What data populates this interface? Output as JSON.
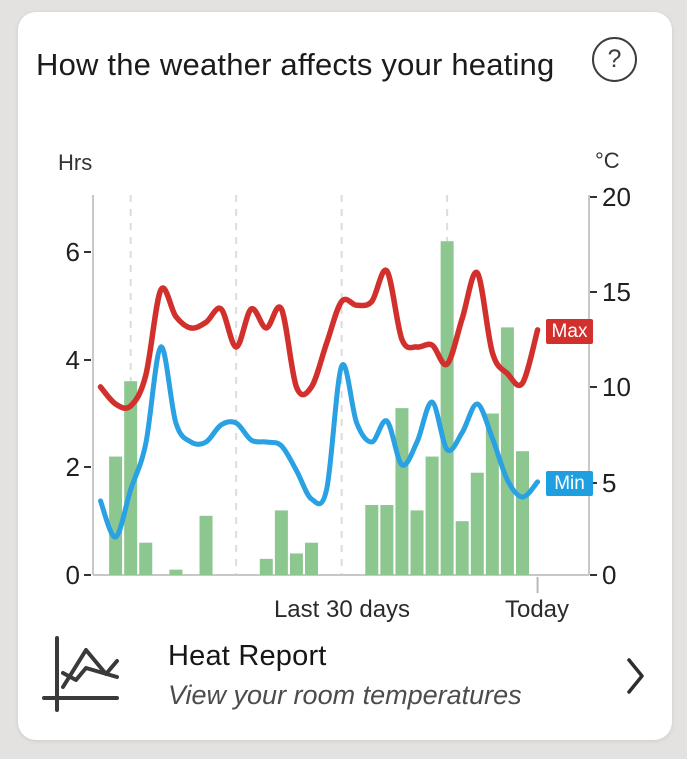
{
  "card": {
    "title": "How the weather affects your heating",
    "help_label": "?"
  },
  "chart_data": {
    "type": "bar+line",
    "title": "How the weather affects your heating",
    "left_axis": {
      "unit": "Hrs",
      "ticks": [
        "6",
        "4",
        "2",
        "0"
      ],
      "range": [
        0,
        7
      ]
    },
    "right_axis": {
      "unit": "°C",
      "ticks": [
        "20",
        "15",
        "10",
        "5",
        "0"
      ],
      "range": [
        0,
        20
      ]
    },
    "x_axis": {
      "label_left": "Last 30 days",
      "label_right": "Today",
      "days": 30,
      "gridline_days": [
        2,
        9,
        16,
        23
      ],
      "grid": "dashed-vertical"
    },
    "bars": {
      "name": "heating-hours",
      "color": "#8dc790",
      "values": [
        0,
        2.2,
        3.6,
        0.6,
        0,
        0.1,
        0,
        1.1,
        0,
        0,
        0,
        0.3,
        1.2,
        0.4,
        0.6,
        0,
        0,
        0,
        1.3,
        1.3,
        3.1,
        1.2,
        2.2,
        6.2,
        1.0,
        1.9,
        3.0,
        4.6,
        2.3,
        0
      ]
    },
    "series": [
      {
        "name": "Max",
        "color": "#d2302c",
        "badge_bg": "#d2302c",
        "values": [
          9.9,
          9.0,
          8.9,
          10.5,
          15.0,
          13.6,
          13.0,
          13.3,
          14.0,
          12.0,
          14.0,
          13.0,
          14.0,
          9.9,
          9.9,
          12.2,
          14.4,
          14.2,
          14.4,
          16.0,
          12.4,
          12.0,
          12.1,
          11.1,
          13.5,
          15.9,
          11.7,
          10.6,
          10.1,
          12.9
        ]
      },
      {
        "name": "Min",
        "color": "#29a1e2",
        "badge_bg": "#1e9fe0",
        "values": [
          3.9,
          2.0,
          4.5,
          6.9,
          12.0,
          8.0,
          7.0,
          7.0,
          7.9,
          8.0,
          7.1,
          7.0,
          6.8,
          5.5,
          4.0,
          4.5,
          11.0,
          8.0,
          7.0,
          8.1,
          5.8,
          7.0,
          9.1,
          6.6,
          7.5,
          9.0,
          7.2,
          5.0,
          4.1,
          4.9
        ]
      }
    ],
    "legend_position": "right-on-plot"
  },
  "footer": {
    "title": "Heat Report",
    "subtitle": "View your room temperatures"
  },
  "colors": {
    "background": "#e4e2e1",
    "card": "#ffffff",
    "axis": "#c8c8c8",
    "gridline": "#dcdcdc",
    "tick_text": "#1f1f1f",
    "bar_green": "#8dc790",
    "line_red": "#d2302c",
    "line_blue": "#29a1e2"
  }
}
